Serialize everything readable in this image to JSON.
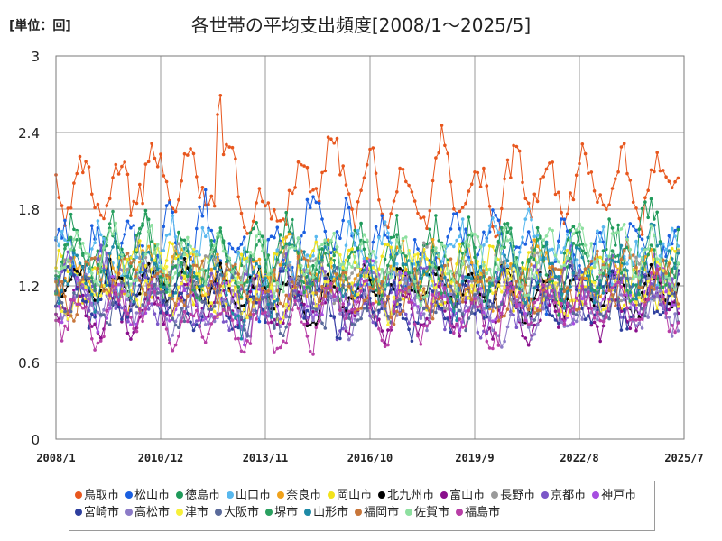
{
  "unit_label": "[単位：回]",
  "chart_data": {
    "type": "line",
    "title": "各世帯の平均支出頻度[2008/1～2025/5]",
    "xlabel": "",
    "ylabel": "",
    "x_tick_labels": [
      "2008/1",
      "2010/12",
      "2013/11",
      "2016/10",
      "2019/9",
      "2022/8",
      "2025/7"
    ],
    "y_tick_labels": [
      "0",
      "0.6",
      "1.2",
      "1.8",
      "2.4",
      "3"
    ],
    "ylim": [
      0,
      3
    ],
    "x_range": [
      "2008/1",
      "2025/7"
    ],
    "grid": true,
    "legend_position": "bottom",
    "series": [
      {
        "name": "鳥取市",
        "color": "#e8571e",
        "base": 2.0,
        "amp": 0.22,
        "noise": 0.16,
        "seed": 3
      },
      {
        "name": "松山市",
        "color": "#1a5fe0",
        "base": 1.5,
        "amp": 0.2,
        "noise": 0.18,
        "seed": 7
      },
      {
        "name": "徳島市",
        "color": "#1f9a5a",
        "base": 1.45,
        "amp": 0.2,
        "noise": 0.18,
        "seed": 11
      },
      {
        "name": "山口市",
        "color": "#58b8ee",
        "base": 1.42,
        "amp": 0.18,
        "noise": 0.15,
        "seed": 13
      },
      {
        "name": "奈良市",
        "color": "#f0a21c",
        "base": 1.3,
        "amp": 0.16,
        "noise": 0.14,
        "seed": 17
      },
      {
        "name": "岡山市",
        "color": "#f2e21a",
        "base": 1.28,
        "amp": 0.16,
        "noise": 0.13,
        "seed": 19
      },
      {
        "name": "北九州市",
        "color": "#000000",
        "base": 1.18,
        "amp": 0.14,
        "noise": 0.11,
        "seed": 23
      },
      {
        "name": "富山市",
        "color": "#8a0f8c",
        "base": 1.0,
        "amp": 0.14,
        "noise": 0.12,
        "seed": 29
      },
      {
        "name": "長野市",
        "color": "#9a9a9a",
        "base": 1.25,
        "amp": 0.15,
        "noise": 0.14,
        "seed": 31
      },
      {
        "name": "京都市",
        "color": "#7b57c8",
        "base": 1.15,
        "amp": 0.16,
        "noise": 0.15,
        "seed": 37
      },
      {
        "name": "神戸市",
        "color": "#a64ee0",
        "base": 1.05,
        "amp": 0.15,
        "noise": 0.14,
        "seed": 41
      },
      {
        "name": "宮崎市",
        "color": "#2e3f9e",
        "base": 1.1,
        "amp": 0.14,
        "noise": 0.13,
        "seed": 43
      },
      {
        "name": "高松市",
        "color": "#8c7bc7",
        "base": 1.08,
        "amp": 0.15,
        "noise": 0.14,
        "seed": 47
      },
      {
        "name": "津市",
        "color": "#f7f03a",
        "base": 1.2,
        "amp": 0.15,
        "noise": 0.13,
        "seed": 53
      },
      {
        "name": "大阪市",
        "color": "#5a6a9a",
        "base": 1.12,
        "amp": 0.15,
        "noise": 0.13,
        "seed": 59
      },
      {
        "name": "堺市",
        "color": "#2aa060",
        "base": 1.35,
        "amp": 0.17,
        "noise": 0.15,
        "seed": 61
      },
      {
        "name": "山形市",
        "color": "#1e8aa6",
        "base": 1.3,
        "amp": 0.16,
        "noise": 0.15,
        "seed": 67
      },
      {
        "name": "福岡市",
        "color": "#c8763a",
        "base": 1.22,
        "amp": 0.15,
        "noise": 0.13,
        "seed": 71
      },
      {
        "name": "佐賀市",
        "color": "#8ee0a0",
        "base": 1.38,
        "amp": 0.17,
        "noise": 0.14,
        "seed": 73
      },
      {
        "name": "福島市",
        "color": "#b83ea6",
        "base": 0.98,
        "amp": 0.15,
        "noise": 0.13,
        "seed": 79
      }
    ]
  }
}
